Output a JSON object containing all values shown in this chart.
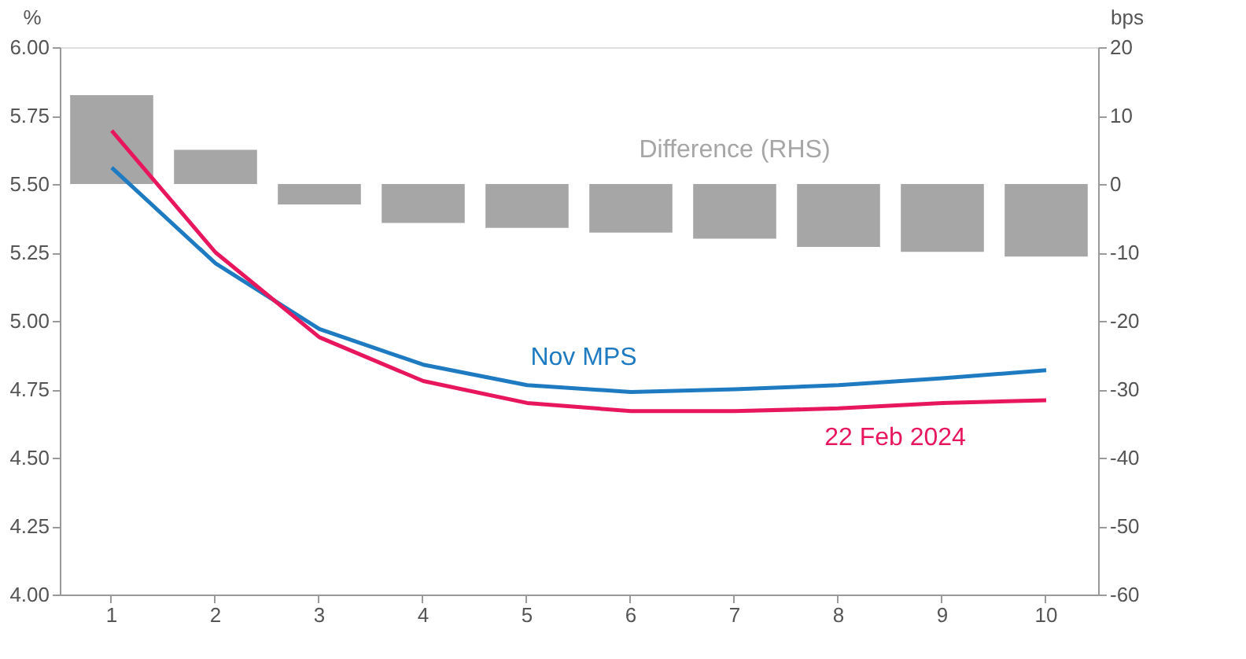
{
  "chart_data": {
    "type": "line",
    "categories": [
      "1",
      "2",
      "3",
      "4",
      "5",
      "6",
      "7",
      "8",
      "9",
      "10"
    ],
    "ylabel": "%",
    "y2label": "bps",
    "ylim": [
      4.0,
      6.0
    ],
    "yticks": [
      {
        "value": 4.0,
        "label": "4.00"
      },
      {
        "value": 4.25,
        "label": "4.25"
      },
      {
        "value": 4.5,
        "label": "4.50"
      },
      {
        "value": 4.75,
        "label": "4.75"
      },
      {
        "value": 5.0,
        "label": "5.00"
      },
      {
        "value": 5.25,
        "label": "5.25"
      },
      {
        "value": 5.5,
        "label": "5.50"
      },
      {
        "value": 5.75,
        "label": "5.75"
      },
      {
        "value": 6.0,
        "label": "6.00"
      }
    ],
    "y2lim": [
      -60,
      20
    ],
    "y2ticks": [
      -60,
      -50,
      -40,
      -30,
      -20,
      -10,
      0,
      10,
      20
    ],
    "grid": false,
    "legend": false,
    "marker": "none",
    "line_style": "solid",
    "series": [
      {
        "name": "Difference (RHS)",
        "type": "bar",
        "axis": "y2",
        "color": "#a6a6a6",
        "values": [
          13,
          5,
          -3,
          -5.7,
          -6.4,
          -7.1,
          -8,
          -9.2,
          -9.9,
          -10.6
        ]
      },
      {
        "name": "Nov MPS",
        "color": "#1f7bc1",
        "values": [
          5.56,
          5.21,
          4.97,
          4.84,
          4.765,
          4.74,
          4.75,
          4.765,
          4.79,
          4.82
        ]
      },
      {
        "name": "22 Feb 2024",
        "color": "#e8175d",
        "values": [
          5.695,
          5.25,
          4.94,
          4.78,
          4.7,
          4.67,
          4.67,
          4.68,
          4.7,
          4.71
        ]
      }
    ]
  }
}
